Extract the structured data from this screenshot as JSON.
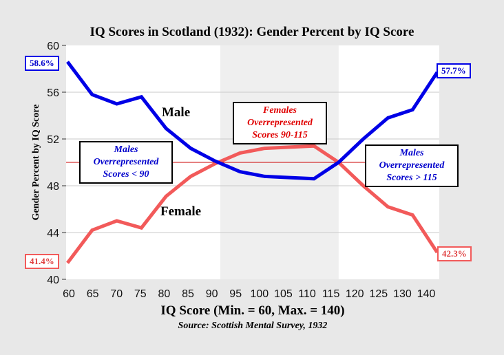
{
  "chart_data": {
    "type": "line",
    "title": "IQ Scores in Scotland (1932): Gender Percent by IQ Score",
    "xlabel": "IQ Score (Min. = 60, Max. = 140)",
    "ylabel": "Gender Percent by IQ Score",
    "source": "Source: Scottish Mental Survey, 1932",
    "categories": [
      "60",
      "65",
      "70",
      "75",
      "80",
      "85",
      "90",
      "95",
      "100",
      "105",
      "110",
      "115",
      "120",
      "125",
      "130",
      "140"
    ],
    "ylim": [
      40,
      60
    ],
    "yticks": [
      40,
      44,
      48,
      52,
      56,
      60
    ],
    "reference_line": 50,
    "shaded_range": [
      "90",
      "115"
    ],
    "series": [
      {
        "name": "Male",
        "color": "#0000e6",
        "values": [
          58.6,
          55.8,
          55.0,
          55.6,
          52.9,
          51.2,
          50.1,
          49.2,
          48.8,
          48.7,
          48.6,
          50.0,
          52.0,
          53.8,
          54.5,
          57.7
        ]
      },
      {
        "name": "Female",
        "color": "#f25a5a",
        "values": [
          41.4,
          44.2,
          45.0,
          44.4,
          47.1,
          48.8,
          49.9,
          50.8,
          51.2,
          51.3,
          51.4,
          50.0,
          48.0,
          46.2,
          45.5,
          42.3
        ]
      }
    ],
    "end_labels": {
      "male_start": "58.6%",
      "male_end": "57.7%",
      "female_start": "41.4%",
      "female_end": "42.3%"
    },
    "annotations": [
      {
        "lines": [
          "Males",
          "Overrepresented",
          "Scores < 90"
        ],
        "color": "#0000cc"
      },
      {
        "lines": [
          "Females",
          "Overrepresented",
          "Scores 90-115"
        ],
        "color": "#e00000"
      },
      {
        "lines": [
          "Males",
          "Overrepresented",
          "Scores > 115"
        ],
        "color": "#0000cc"
      }
    ],
    "grid": true,
    "legend": "inline labels"
  }
}
